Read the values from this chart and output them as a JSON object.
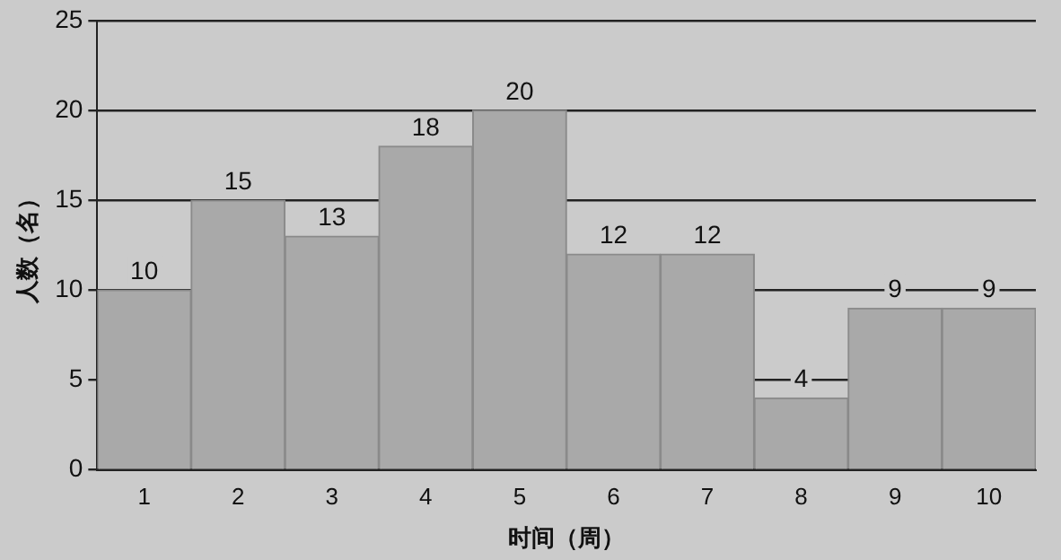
{
  "chart_data": {
    "type": "bar",
    "xlabel": "时间（周）",
    "ylabel": "人数（名）",
    "categories": [
      "1",
      "2",
      "3",
      "4",
      "5",
      "6",
      "7",
      "8",
      "9",
      "10"
    ],
    "values": [
      10,
      15,
      13,
      18,
      20,
      12,
      12,
      4,
      9,
      9
    ],
    "color": "#a9a9a9",
    "ylim": [
      0,
      25
    ],
    "yticks": [
      0,
      5,
      10,
      15,
      20,
      25
    ],
    "grid": "y",
    "data_labels": true
  }
}
